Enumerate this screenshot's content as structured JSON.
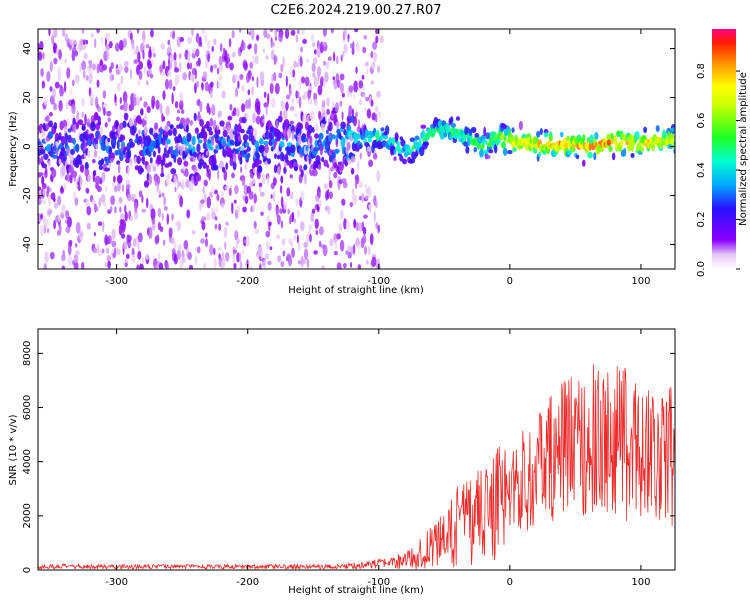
{
  "title": "C2E6.2024.219.00.27.R07",
  "chart_data": [
    {
      "type": "heatmap",
      "xlabel": "Height of straight line (km)",
      "ylabel": "Frequency (Hz)",
      "xlim": [
        -360,
        126
      ],
      "ylim": [
        -50,
        48
      ],
      "x_ticks": [
        -300,
        -200,
        -100,
        0,
        100
      ],
      "x_tick_labels": [
        "-300",
        "-200",
        "-100",
        "0",
        "100"
      ],
      "y_ticks": [
        40,
        20,
        0,
        -20,
        -40
      ],
      "y_tick_labels": [
        "40",
        "20",
        "0",
        "-20",
        "-40"
      ],
      "colorbar": {
        "label": "Normalized spectral amplitude",
        "range": [
          0,
          0.97
        ],
        "ticks": [
          0.0,
          0.2,
          0.4,
          0.6,
          0.8
        ],
        "tick_labels": [
          "0.0",
          "0.2",
          "0.4",
          "0.6",
          "0.8"
        ]
      },
      "ridge": [
        {
          "x": -360,
          "f": 0,
          "amp": 0.28
        },
        {
          "x": -250,
          "f": 0,
          "amp": 0.3
        },
        {
          "x": -140,
          "f": 0,
          "amp": 0.3
        },
        {
          "x": -120,
          "f": 2,
          "amp": 0.42
        },
        {
          "x": -100,
          "f": 4,
          "amp": 0.45
        },
        {
          "x": -90,
          "f": 2,
          "amp": 0.45
        },
        {
          "x": -80,
          "f": -3,
          "amp": 0.47
        },
        {
          "x": -70,
          "f": 1,
          "amp": 0.5
        },
        {
          "x": -60,
          "f": 6,
          "amp": 0.5
        },
        {
          "x": -50,
          "f": 7,
          "amp": 0.5
        },
        {
          "x": -40,
          "f": 6,
          "amp": 0.5
        },
        {
          "x": -30,
          "f": 3,
          "amp": 0.5
        },
        {
          "x": -20,
          "f": 0,
          "amp": 0.6
        },
        {
          "x": -10,
          "f": 4,
          "amp": 0.6
        },
        {
          "x": 0,
          "f": 2,
          "amp": 0.75
        },
        {
          "x": 20,
          "f": 1,
          "amp": 0.8
        },
        {
          "x": 40,
          "f": 1,
          "amp": 0.85
        },
        {
          "x": 60,
          "f": 0,
          "amp": 0.85
        },
        {
          "x": 80,
          "f": 2,
          "amp": 0.85
        },
        {
          "x": 100,
          "f": 1,
          "amp": 0.8
        },
        {
          "x": 126,
          "f": 3,
          "amp": 0.7
        }
      ]
    },
    {
      "type": "line",
      "xlabel": "Height of straight line (km)",
      "ylabel": "SNR (10 * v/v)",
      "xlim": [
        -360,
        126
      ],
      "ylim": [
        0,
        8900
      ],
      "x_ticks": [
        -300,
        -200,
        -100,
        0,
        100
      ],
      "x_tick_labels": [
        "-300",
        "-200",
        "-100",
        "0",
        "100"
      ],
      "y_ticks": [
        0,
        2000,
        4000,
        6000,
        8000
      ],
      "y_tick_labels": [
        "0",
        "2000",
        "4000",
        "6000",
        "8000"
      ],
      "series": [
        {
          "color": "#ee2b2b",
          "envelope": [
            {
              "x": -360,
              "mean": 130,
              "spread": 90
            },
            {
              "x": -200,
              "mean": 120,
              "spread": 80
            },
            {
              "x": -130,
              "mean": 120,
              "spread": 90
            },
            {
              "x": -110,
              "mean": 200,
              "spread": 150
            },
            {
              "x": -90,
              "mean": 250,
              "spread": 200
            },
            {
              "x": -70,
              "mean": 500,
              "spread": 500
            },
            {
              "x": -60,
              "mean": 1000,
              "spread": 900
            },
            {
              "x": -50,
              "mean": 1000,
              "spread": 1000
            },
            {
              "x": -40,
              "mean": 1600,
              "spread": 1500
            },
            {
              "x": -25,
              "mean": 2000,
              "spread": 1800
            },
            {
              "x": -10,
              "mean": 2400,
              "spread": 2100
            },
            {
              "x": 0,
              "mean": 3000,
              "spread": 1800
            },
            {
              "x": 20,
              "mean": 3600,
              "spread": 2100
            },
            {
              "x": 40,
              "mean": 4500,
              "spread": 2600
            },
            {
              "x": 60,
              "mean": 4800,
              "spread": 2800
            },
            {
              "x": 80,
              "mean": 4700,
              "spread": 2900
            },
            {
              "x": 100,
              "mean": 4500,
              "spread": 2900
            },
            {
              "x": 126,
              "mean": 4200,
              "spread": 2600
            }
          ]
        }
      ]
    }
  ]
}
